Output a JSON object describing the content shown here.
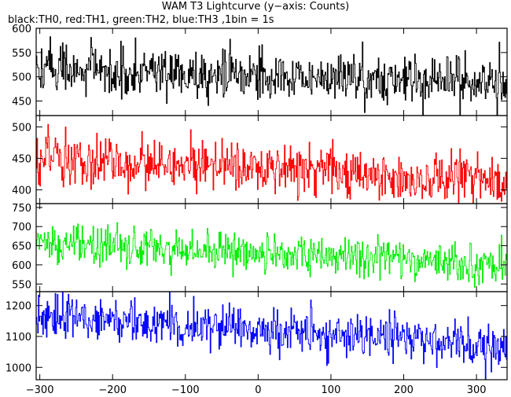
{
  "chart_data": {
    "type": "line",
    "title": "WAM T3 Lightcurve (y−axis: Counts)",
    "subtitle": "black:TH0, red:TH1, green:TH2, blue:TH3 ,1bin = 1s",
    "xlim": [
      -305,
      342
    ],
    "x_ticks": [
      -300,
      -200,
      -100,
      0,
      100,
      200,
      300
    ],
    "x_tick_labels": [
      "−300",
      "−200",
      "−100",
      "0",
      "100",
      "200",
      "300"
    ],
    "x_step": 1,
    "grid": false,
    "panels": [
      {
        "color": "#000000",
        "ylim": [
          420,
          600
        ],
        "y_ticks": [
          450,
          500,
          550,
          600
        ],
        "trend": [
          [
            -305,
            515
          ],
          [
            -250,
            515
          ],
          [
            -150,
            510
          ],
          [
            0,
            505
          ],
          [
            100,
            500
          ],
          [
            200,
            495
          ],
          [
            300,
            485
          ],
          [
            342,
            485
          ]
        ],
        "noise": 25
      },
      {
        "color": "#ff0000",
        "ylim": [
          378,
          518
        ],
        "y_ticks": [
          400,
          450,
          500
        ],
        "trend": [
          [
            -305,
            445
          ],
          [
            -250,
            447
          ],
          [
            -150,
            443
          ],
          [
            0,
            435
          ],
          [
            100,
            428
          ],
          [
            200,
            420
          ],
          [
            300,
            412
          ],
          [
            342,
            408
          ]
        ],
        "noise": 20
      },
      {
        "color": "#00ee00",
        "ylim": [
          530,
          760
        ],
        "y_ticks": [
          550,
          600,
          650,
          700,
          750
        ],
        "trend": [
          [
            -305,
            660
          ],
          [
            -250,
            655
          ],
          [
            -150,
            645
          ],
          [
            0,
            635
          ],
          [
            100,
            625
          ],
          [
            200,
            615
          ],
          [
            300,
            600
          ],
          [
            342,
            595
          ]
        ],
        "noise": 25
      },
      {
        "color": "#0000ff",
        "ylim": [
          960,
          1245
        ],
        "y_ticks": [
          1000,
          1100,
          1200
        ],
        "trend": [
          [
            -305,
            1165
          ],
          [
            -250,
            1160
          ],
          [
            -150,
            1145
          ],
          [
            0,
            1125
          ],
          [
            100,
            1110
          ],
          [
            200,
            1095
          ],
          [
            300,
            1070
          ],
          [
            342,
            1060
          ]
        ],
        "noise": 35
      }
    ]
  }
}
